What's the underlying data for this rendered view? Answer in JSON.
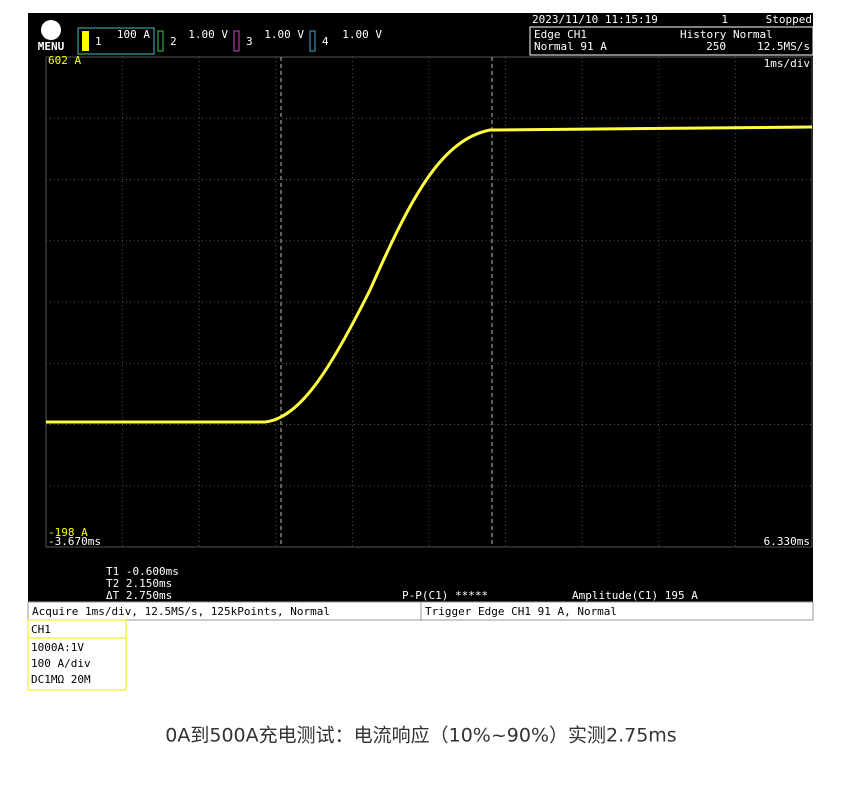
{
  "header": {
    "menu": "MENU",
    "channels": [
      {
        "number": "1",
        "scale": "100 A"
      },
      {
        "number": "2",
        "scale": "1.00 V"
      },
      {
        "number": "3",
        "scale": "1.00 V"
      },
      {
        "number": "4",
        "scale": "1.00 V"
      }
    ],
    "datetime": "2023/11/10 11:15:19",
    "count": "1",
    "status": "Stopped",
    "trigger_type": "Edge CH1",
    "trigger_level": "Normal 91 A",
    "history_label": "History",
    "history_value": "250",
    "mode": "Normal",
    "sample_rate": "12.5MS/s",
    "timebase": "1ms/div"
  },
  "screen": {
    "top_level": "602 A",
    "bottom_level": "-198 A",
    "left_time": "-3.670ms",
    "right_time": "6.330ms"
  },
  "measurements": {
    "t1": "T1  -0.600ms",
    "t2": "T2  2.150ms",
    "dt": "ΔT  2.750ms",
    "pp": "P-P(C1)  *****",
    "amplitude": "Amplitude(C1)  195 A"
  },
  "status_bar": {
    "acquire": "Acquire 1ms/div, 12.5MS/s, 125kPoints, Normal",
    "trigger": "Trigger Edge CH1 91 A, Normal"
  },
  "channel_box": {
    "title": "CH1",
    "probe": "1000A:1V",
    "scale": "100 A/div",
    "coupling": "DC1MΩ 20M"
  },
  "caption": "0A到500A充电测试：电流响应（10%~90%）实测2.75ms"
}
